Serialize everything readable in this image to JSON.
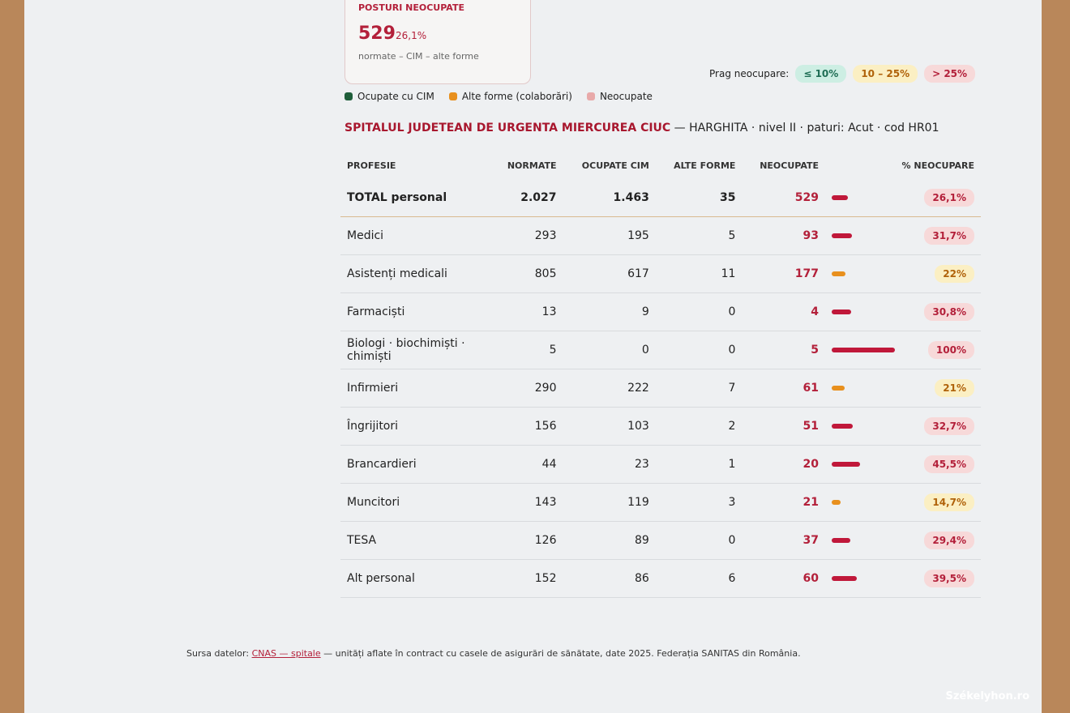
{
  "card": {
    "label": "POSTURI NEOCUPATE",
    "value": "529",
    "pct": "26,1%",
    "sub": "normate – CIM – alte forme"
  },
  "legend": [
    {
      "label": "Ocupate cu CIM",
      "color": "#1f5e3a"
    },
    {
      "label": "Alte forme (colaborări)",
      "color": "#e8901e"
    },
    {
      "label": "Neocupate",
      "color": "#e8a9a9"
    }
  ],
  "threshold": {
    "label": "Prag neocupare:",
    "levels": [
      {
        "label": "≤ 10%",
        "max": 10,
        "bg": "#cdeee3",
        "fg": "#1f6e55",
        "bar": "#2e9a70"
      },
      {
        "label": "10 – 25%",
        "max": 25,
        "bg": "#fbefc3",
        "fg": "#b0620a",
        "bar": "#e8901e"
      },
      {
        "label": "> 25%",
        "bg": "#f7d9d9",
        "fg": "#b3203a",
        "bar": "#c0183a"
      }
    ]
  },
  "hospital": {
    "name": "SPITALUL JUDETEAN DE URGENTA MIERCUREA CIUC",
    "details": "— HARGHITA · nivel II · paturi: Acut · cod HR01"
  },
  "table": {
    "headers": [
      "PROFESIE",
      "NORMATE",
      "OCUPATE CIM",
      "ALTE FORME",
      "NEOCUPATE",
      "% NEOCUPARE"
    ],
    "rows": [
      {
        "profesie": "TOTAL personal",
        "normate": "2.027",
        "ocupate": "1.463",
        "alte": "35",
        "neocupate": "529",
        "pct": {
          "value": 26.1,
          "label": "26,1%"
        }
      },
      {
        "profesie": "Medici",
        "normate": "293",
        "ocupate": "195",
        "alte": "5",
        "neocupate": "93",
        "pct": {
          "value": 31.7,
          "label": "31,7%"
        }
      },
      {
        "profesie": "Asistenți medicali",
        "normate": "805",
        "ocupate": "617",
        "alte": "11",
        "neocupate": "177",
        "pct": {
          "value": 22,
          "label": "22%"
        }
      },
      {
        "profesie": "Farmaciști",
        "normate": "13",
        "ocupate": "9",
        "alte": "0",
        "neocupate": "4",
        "pct": {
          "value": 30.8,
          "label": "30,8%"
        }
      },
      {
        "profesie": "Biologi · biochimiști · chimiști",
        "normate": "5",
        "ocupate": "0",
        "alte": "0",
        "neocupate": "5",
        "pct": {
          "value": 100,
          "label": "100%"
        }
      },
      {
        "profesie": "Infirmieri",
        "normate": "290",
        "ocupate": "222",
        "alte": "7",
        "neocupate": "61",
        "pct": {
          "value": 21,
          "label": "21%"
        }
      },
      {
        "profesie": "Îngrijitori",
        "normate": "156",
        "ocupate": "103",
        "alte": "2",
        "neocupate": "51",
        "pct": {
          "value": 32.7,
          "label": "32,7%"
        }
      },
      {
        "profesie": "Brancardieri",
        "normate": "44",
        "ocupate": "23",
        "alte": "1",
        "neocupate": "20",
        "pct": {
          "value": 45.5,
          "label": "45,5%"
        }
      },
      {
        "profesie": "Muncitori",
        "normate": "143",
        "ocupate": "119",
        "alte": "3",
        "neocupate": "21",
        "pct": {
          "value": 14.7,
          "label": "14,7%"
        }
      },
      {
        "profesie": "TESA",
        "normate": "126",
        "ocupate": "89",
        "alte": "0",
        "neocupate": "37",
        "pct": {
          "value": 29.4,
          "label": "29,4%"
        }
      },
      {
        "profesie": "Alt personal",
        "normate": "152",
        "ocupate": "86",
        "alte": "6",
        "neocupate": "60",
        "pct": {
          "value": 39.5,
          "label": "39,5%"
        }
      }
    ]
  },
  "footer": {
    "prefix": "Sursa datelor:",
    "link": "CNAS — spitale",
    "text": "— unități aflate în contract cu casele de asigurări de sănătate, date 2025. Federația SANITAS din România."
  },
  "watermark": "Székelyhon.ro"
}
